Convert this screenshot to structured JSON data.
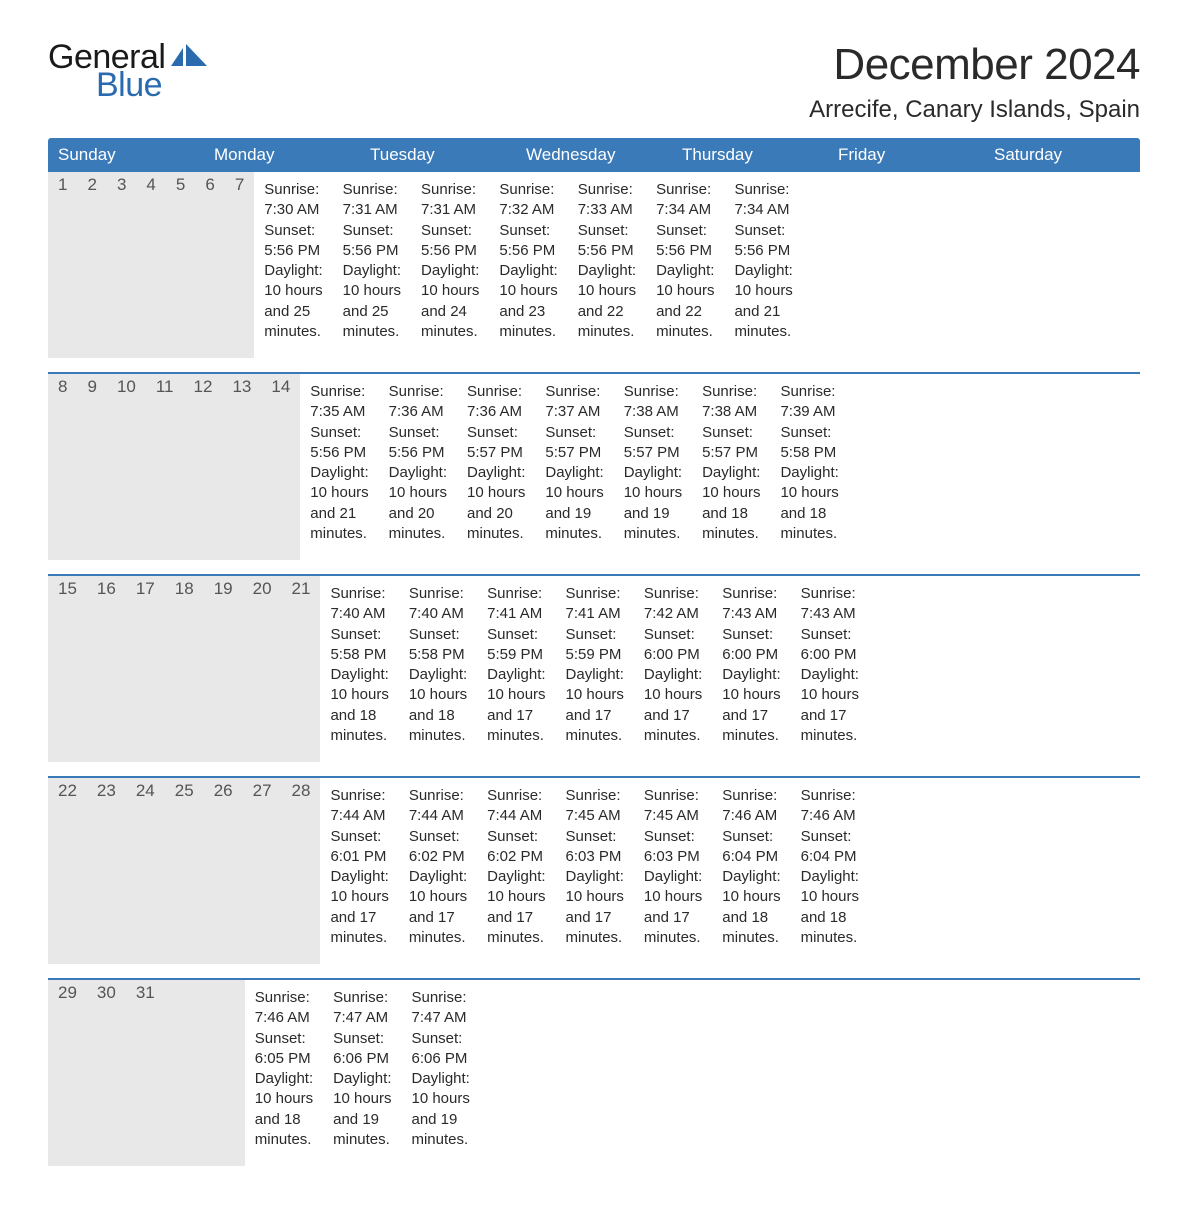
{
  "logo": {
    "word1": "General",
    "word2": "Blue",
    "word1_color": "#1a1a1a",
    "word2_color": "#2a6bb0",
    "sail_color": "#2a6bb0"
  },
  "title": "December 2024",
  "location": "Arrecife, Canary Islands, Spain",
  "colors": {
    "header_bg": "#3a7ab8",
    "header_text": "#ffffff",
    "daynum_bg": "#e8e8e8",
    "daynum_text": "#555555",
    "body_text": "#2a2a2a",
    "week_border": "#3a7ab8",
    "page_bg": "#ffffff"
  },
  "typography": {
    "title_fontsize": 44,
    "location_fontsize": 24,
    "header_fontsize": 17,
    "daynum_fontsize": 17,
    "cell_fontsize": 15,
    "logo_fontsize": 34
  },
  "day_names": [
    "Sunday",
    "Monday",
    "Tuesday",
    "Wednesday",
    "Thursday",
    "Friday",
    "Saturday"
  ],
  "weeks": [
    [
      {
        "num": "1",
        "sunrise": "7:30 AM",
        "sunset": "5:56 PM",
        "daylight": "10 hours and 25 minutes."
      },
      {
        "num": "2",
        "sunrise": "7:31 AM",
        "sunset": "5:56 PM",
        "daylight": "10 hours and 25 minutes."
      },
      {
        "num": "3",
        "sunrise": "7:31 AM",
        "sunset": "5:56 PM",
        "daylight": "10 hours and 24 minutes."
      },
      {
        "num": "4",
        "sunrise": "7:32 AM",
        "sunset": "5:56 PM",
        "daylight": "10 hours and 23 minutes."
      },
      {
        "num": "5",
        "sunrise": "7:33 AM",
        "sunset": "5:56 PM",
        "daylight": "10 hours and 22 minutes."
      },
      {
        "num": "6",
        "sunrise": "7:34 AM",
        "sunset": "5:56 PM",
        "daylight": "10 hours and 22 minutes."
      },
      {
        "num": "7",
        "sunrise": "7:34 AM",
        "sunset": "5:56 PM",
        "daylight": "10 hours and 21 minutes."
      }
    ],
    [
      {
        "num": "8",
        "sunrise": "7:35 AM",
        "sunset": "5:56 PM",
        "daylight": "10 hours and 21 minutes."
      },
      {
        "num": "9",
        "sunrise": "7:36 AM",
        "sunset": "5:56 PM",
        "daylight": "10 hours and 20 minutes."
      },
      {
        "num": "10",
        "sunrise": "7:36 AM",
        "sunset": "5:57 PM",
        "daylight": "10 hours and 20 minutes."
      },
      {
        "num": "11",
        "sunrise": "7:37 AM",
        "sunset": "5:57 PM",
        "daylight": "10 hours and 19 minutes."
      },
      {
        "num": "12",
        "sunrise": "7:38 AM",
        "sunset": "5:57 PM",
        "daylight": "10 hours and 19 minutes."
      },
      {
        "num": "13",
        "sunrise": "7:38 AM",
        "sunset": "5:57 PM",
        "daylight": "10 hours and 18 minutes."
      },
      {
        "num": "14",
        "sunrise": "7:39 AM",
        "sunset": "5:58 PM",
        "daylight": "10 hours and 18 minutes."
      }
    ],
    [
      {
        "num": "15",
        "sunrise": "7:40 AM",
        "sunset": "5:58 PM",
        "daylight": "10 hours and 18 minutes."
      },
      {
        "num": "16",
        "sunrise": "7:40 AM",
        "sunset": "5:58 PM",
        "daylight": "10 hours and 18 minutes."
      },
      {
        "num": "17",
        "sunrise": "7:41 AM",
        "sunset": "5:59 PM",
        "daylight": "10 hours and 17 minutes."
      },
      {
        "num": "18",
        "sunrise": "7:41 AM",
        "sunset": "5:59 PM",
        "daylight": "10 hours and 17 minutes."
      },
      {
        "num": "19",
        "sunrise": "7:42 AM",
        "sunset": "6:00 PM",
        "daylight": "10 hours and 17 minutes."
      },
      {
        "num": "20",
        "sunrise": "7:43 AM",
        "sunset": "6:00 PM",
        "daylight": "10 hours and 17 minutes."
      },
      {
        "num": "21",
        "sunrise": "7:43 AM",
        "sunset": "6:00 PM",
        "daylight": "10 hours and 17 minutes."
      }
    ],
    [
      {
        "num": "22",
        "sunrise": "7:44 AM",
        "sunset": "6:01 PM",
        "daylight": "10 hours and 17 minutes."
      },
      {
        "num": "23",
        "sunrise": "7:44 AM",
        "sunset": "6:02 PM",
        "daylight": "10 hours and 17 minutes."
      },
      {
        "num": "24",
        "sunrise": "7:44 AM",
        "sunset": "6:02 PM",
        "daylight": "10 hours and 17 minutes."
      },
      {
        "num": "25",
        "sunrise": "7:45 AM",
        "sunset": "6:03 PM",
        "daylight": "10 hours and 17 minutes."
      },
      {
        "num": "26",
        "sunrise": "7:45 AM",
        "sunset": "6:03 PM",
        "daylight": "10 hours and 17 minutes."
      },
      {
        "num": "27",
        "sunrise": "7:46 AM",
        "sunset": "6:04 PM",
        "daylight": "10 hours and 18 minutes."
      },
      {
        "num": "28",
        "sunrise": "7:46 AM",
        "sunset": "6:04 PM",
        "daylight": "10 hours and 18 minutes."
      }
    ],
    [
      {
        "num": "29",
        "sunrise": "7:46 AM",
        "sunset": "6:05 PM",
        "daylight": "10 hours and 18 minutes."
      },
      {
        "num": "30",
        "sunrise": "7:47 AM",
        "sunset": "6:06 PM",
        "daylight": "10 hours and 19 minutes."
      },
      {
        "num": "31",
        "sunrise": "7:47 AM",
        "sunset": "6:06 PM",
        "daylight": "10 hours and 19 minutes."
      },
      null,
      null,
      null,
      null
    ]
  ],
  "labels": {
    "sunrise_prefix": "Sunrise: ",
    "sunset_prefix": "Sunset: ",
    "daylight_prefix": "Daylight: "
  }
}
